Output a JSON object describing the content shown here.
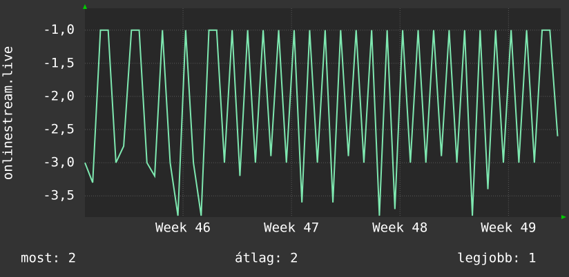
{
  "chart_data": {
    "type": "line",
    "y_label": "onlinestream.live",
    "x": [
      0,
      0.5,
      1,
      1.5,
      2,
      2.5,
      3,
      3.5,
      4,
      4.5,
      5,
      5.5,
      6,
      6.5,
      7,
      7.5,
      8,
      8.5,
      9,
      9.5,
      10,
      10.5,
      11,
      11.5,
      12,
      12.5,
      13,
      13.5,
      14,
      14.5,
      15,
      15.5,
      16,
      16.5,
      17,
      17.5,
      18,
      18.5,
      19,
      19.5,
      20,
      20.5,
      21,
      21.5,
      22,
      22.5,
      23,
      23.5,
      24,
      24.5,
      25,
      25.5,
      26,
      26.5,
      27,
      27.5,
      28,
      28.5,
      29,
      29.5,
      30,
      30.5
    ],
    "series": [
      {
        "color": "#7ee8b0",
        "values": [
          -3.0,
          -3.3,
          -1.0,
          -1.0,
          -3.0,
          -2.75,
          -1.0,
          -1.0,
          -3.0,
          -3.2,
          -1.0,
          -3.0,
          -3.8,
          -1.0,
          -3.0,
          -3.8,
          -1.0,
          -1.0,
          -3.0,
          -1.0,
          -3.2,
          -1.0,
          -3.0,
          -1.0,
          -2.9,
          -1.0,
          -3.0,
          -1.0,
          -3.6,
          -1.0,
          -3.0,
          -1.0,
          -3.6,
          -1.0,
          -2.9,
          -1.0,
          -3.0,
          -1.0,
          -3.8,
          -1.0,
          -3.7,
          -1.0,
          -3.0,
          -1.0,
          -3.0,
          -1.0,
          -2.9,
          -1.0,
          -3.0,
          -1.0,
          -3.8,
          -1.0,
          -3.4,
          -1.0,
          -3.0,
          -1.0,
          -3.0,
          -1.0,
          -3.0,
          -1.0,
          -1.0,
          -2.6
        ]
      }
    ],
    "xlim": [
      0,
      30.7
    ],
    "xticks": [
      {
        "value": 6.33,
        "label": "Week 46"
      },
      {
        "value": 13.33,
        "label": "Week 47"
      },
      {
        "value": 20.33,
        "label": "Week 48"
      },
      {
        "value": 27.33,
        "label": "Week 49"
      }
    ],
    "ylim": [
      -3.82,
      -0.67
    ],
    "yticks": [
      {
        "value": -1.0,
        "label": "-1,0"
      },
      {
        "value": -1.5,
        "label": "-1,5"
      },
      {
        "value": -2.0,
        "label": "-2,0"
      },
      {
        "value": -2.5,
        "label": "-2,5"
      },
      {
        "value": -3.0,
        "label": "-3,0"
      },
      {
        "value": -3.5,
        "label": "-3,5"
      }
    ],
    "grid": true,
    "footer": [
      "most: 2",
      "átlag: 2",
      "legjobb: 1"
    ]
  }
}
